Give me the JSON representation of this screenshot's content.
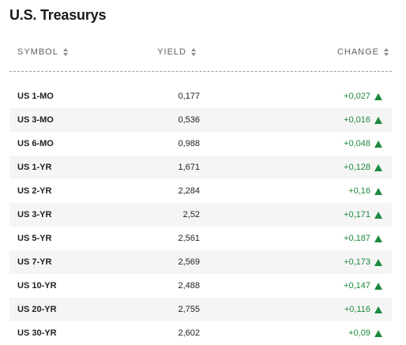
{
  "title": "U.S. Treasurys",
  "columns": {
    "symbol": "SYMBOL",
    "yield": "YIELD",
    "change": "CHANGE"
  },
  "colors": {
    "positive": "#1d8a3e"
  },
  "icons": {
    "sort": "sort-icon",
    "change_up": "up-arrow-icon"
  },
  "rows": [
    {
      "symbol": "US 1-MO",
      "yield": "0,177",
      "change": "+0,027",
      "direction": "up"
    },
    {
      "symbol": "US 3-MO",
      "yield": "0,536",
      "change": "+0,016",
      "direction": "up"
    },
    {
      "symbol": "US 6-MO",
      "yield": "0,988",
      "change": "+0,048",
      "direction": "up"
    },
    {
      "symbol": "US 1-YR",
      "yield": "1,671",
      "change": "+0,128",
      "direction": "up"
    },
    {
      "symbol": "US 2-YR",
      "yield": "2,284",
      "change": "+0,16",
      "direction": "up"
    },
    {
      "symbol": "US 3-YR",
      "yield": "2,52",
      "change": "+0,171",
      "direction": "up"
    },
    {
      "symbol": "US 5-YR",
      "yield": "2,561",
      "change": "+0,187",
      "direction": "up"
    },
    {
      "symbol": "US 7-YR",
      "yield": "2,569",
      "change": "+0,173",
      "direction": "up"
    },
    {
      "symbol": "US 10-YR",
      "yield": "2,488",
      "change": "+0,147",
      "direction": "up"
    },
    {
      "symbol": "US 20-YR",
      "yield": "2,755",
      "change": "+0,116",
      "direction": "up"
    },
    {
      "symbol": "US 30-YR",
      "yield": "2,602",
      "change": "+0,09",
      "direction": "up"
    }
  ]
}
